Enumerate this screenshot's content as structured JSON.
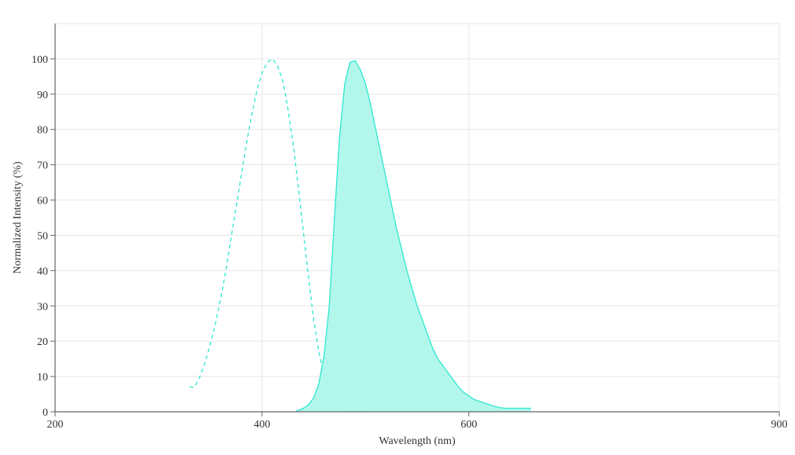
{
  "chart_data": {
    "type": "area",
    "xlabel": "Wavelength (nm)",
    "ylabel": "Normalized Intensity (%)",
    "xlim": [
      200,
      900
    ],
    "ylim": [
      0,
      110
    ],
    "x_ticks": [
      200,
      400,
      600,
      900
    ],
    "y_ticks": [
      0,
      10,
      20,
      30,
      40,
      50,
      60,
      70,
      80,
      90,
      100
    ],
    "grid": true,
    "legend": false,
    "series": [
      {
        "style": "dashed",
        "color": "#2ee8d0",
        "filled": false,
        "x": [
          330,
          335,
          340,
          345,
          350,
          355,
          360,
          365,
          370,
          375,
          380,
          385,
          390,
          395,
          400,
          405,
          410,
          415,
          420,
          425,
          430,
          435,
          440,
          445,
          450,
          455,
          460,
          465,
          470,
          475,
          480,
          485,
          490,
          495
        ],
        "y": [
          7,
          7,
          10,
          14,
          19,
          25,
          32,
          40,
          49,
          58,
          67,
          76,
          84,
          91,
          96,
          99,
          100,
          98,
          94,
          86,
          76,
          64,
          51,
          38,
          26,
          17,
          10,
          6,
          3,
          1.5,
          0.6,
          0.2,
          0.05,
          0
        ]
      },
      {
        "style": "solid",
        "color": "#2ee8d0",
        "fill": "#aef7ea",
        "filled": true,
        "x": [
          432,
          440,
          445,
          450,
          455,
          460,
          465,
          470,
          475,
          480,
          485,
          490,
          495,
          500,
          505,
          510,
          515,
          520,
          525,
          530,
          535,
          540,
          545,
          550,
          555,
          560,
          565,
          570,
          575,
          580,
          585,
          590,
          595,
          600,
          605,
          610,
          615,
          620,
          625,
          630,
          635,
          640,
          645,
          650,
          655,
          660
        ],
        "y": [
          0,
          1,
          2,
          4,
          8,
          16,
          30,
          55,
          78,
          93,
          99,
          99.5,
          97,
          93,
          87,
          80,
          73,
          66,
          59,
          52,
          46,
          40,
          35,
          30,
          26,
          22,
          18,
          15,
          13,
          11,
          9,
          7,
          5.5,
          4.5,
          3.5,
          3,
          2.5,
          2,
          1.5,
          1.2,
          1,
          1,
          1,
          1,
          1,
          1
        ]
      }
    ]
  }
}
